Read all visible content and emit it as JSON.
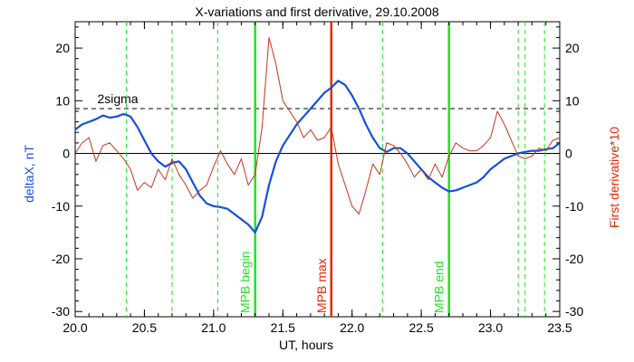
{
  "chart_data": {
    "type": "line",
    "title": "X-variations and first derivative, 29.10.2008",
    "xlabel": "UT, hours",
    "ylabel_left": "deltaX, nT",
    "ylabel_right": "First derivative*10",
    "xlim": [
      20.0,
      23.5
    ],
    "ylim": [
      -31,
      25
    ],
    "x_ticks": [
      "20.0",
      "20.5",
      "21.0",
      "21.5",
      "22.0",
      "22.5",
      "23.0",
      "23.5"
    ],
    "y_ticks": [
      -30,
      -20,
      -10,
      0,
      10,
      20
    ],
    "sigma_level": 8.5,
    "sigma_label": "2sigma",
    "series": [
      {
        "name": "deltaX",
        "color": "#1450dc",
        "x": [
          20.0,
          20.05,
          20.1,
          20.15,
          20.2,
          20.25,
          20.3,
          20.35,
          20.4,
          20.45,
          20.5,
          20.55,
          20.6,
          20.65,
          20.7,
          20.75,
          20.8,
          20.85,
          20.9,
          20.95,
          21.0,
          21.05,
          21.1,
          21.15,
          21.2,
          21.25,
          21.3,
          21.35,
          21.4,
          21.45,
          21.5,
          21.55,
          21.6,
          21.65,
          21.7,
          21.75,
          21.8,
          21.85,
          21.9,
          21.95,
          22.0,
          22.05,
          22.1,
          22.15,
          22.2,
          22.25,
          22.3,
          22.35,
          22.4,
          22.45,
          22.5,
          22.55,
          22.6,
          22.65,
          22.7,
          22.75,
          22.8,
          22.85,
          22.9,
          22.95,
          23.0,
          23.05,
          23.1,
          23.15,
          23.2,
          23.25,
          23.3,
          23.35,
          23.4,
          23.45,
          23.5
        ],
        "values": [
          4.5,
          5.5,
          6.0,
          6.5,
          7.2,
          6.8,
          7.0,
          7.5,
          7.0,
          5.0,
          2.5,
          0.0,
          -1.5,
          -2.5,
          -1.8,
          -1.5,
          -3.0,
          -5.5,
          -8.0,
          -9.5,
          -10.0,
          -10.2,
          -10.5,
          -11.5,
          -12.5,
          -13.5,
          -15.0,
          -12.0,
          -6.0,
          -1.5,
          1.5,
          3.5,
          5.5,
          7.0,
          8.5,
          10.0,
          11.5,
          12.5,
          13.8,
          13.0,
          11.0,
          8.5,
          5.5,
          3.0,
          1.0,
          0.3,
          1.0,
          1.0,
          0.0,
          -1.5,
          -3.0,
          -4.5,
          -5.5,
          -6.5,
          -7.2,
          -7.0,
          -6.5,
          -6.0,
          -5.5,
          -4.5,
          -3.0,
          -2.0,
          -1.0,
          -0.5,
          0.0,
          0.3,
          0.5,
          0.5,
          0.8,
          1.0,
          2.0
        ]
      },
      {
        "name": "First derivative*10",
        "color": "#c8321e",
        "x": [
          20.0,
          20.05,
          20.1,
          20.15,
          20.2,
          20.25,
          20.3,
          20.35,
          20.4,
          20.45,
          20.5,
          20.55,
          20.6,
          20.65,
          20.7,
          20.75,
          20.8,
          20.85,
          20.9,
          20.95,
          21.0,
          21.05,
          21.1,
          21.15,
          21.2,
          21.25,
          21.3,
          21.35,
          21.4,
          21.45,
          21.5,
          21.55,
          21.6,
          21.65,
          21.7,
          21.75,
          21.8,
          21.85,
          21.9,
          21.95,
          22.0,
          22.05,
          22.1,
          22.15,
          22.2,
          22.25,
          22.3,
          22.35,
          22.4,
          22.45,
          22.5,
          22.55,
          22.6,
          22.65,
          22.7,
          22.75,
          22.8,
          22.85,
          22.9,
          22.95,
          23.0,
          23.05,
          23.1,
          23.15,
          23.2,
          23.25,
          23.3,
          23.35,
          23.4,
          23.45,
          23.5
        ],
        "values": [
          0.0,
          2.0,
          3.0,
          -1.5,
          1.5,
          2.0,
          0.5,
          -1.0,
          -3.0,
          -7.0,
          -5.5,
          -6.5,
          -3.0,
          -5.0,
          -1.0,
          -4.0,
          -6.0,
          -8.5,
          -7.0,
          -6.0,
          -2.5,
          0.5,
          -2.0,
          -4.0,
          -1.0,
          -6.0,
          -4.0,
          5.0,
          22.0,
          17.0,
          10.0,
          8.0,
          6.0,
          3.0,
          4.5,
          2.5,
          3.0,
          5.0,
          -2.0,
          -6.0,
          -10.0,
          -11.5,
          -7.0,
          -2.0,
          -4.0,
          2.0,
          1.5,
          0.0,
          -2.0,
          -4.5,
          -3.0,
          -5.0,
          -2.0,
          -4.5,
          -0.5,
          2.0,
          1.0,
          0.5,
          0.5,
          1.5,
          3.0,
          8.0,
          5.5,
          2.5,
          -0.5,
          -1.0,
          -0.5,
          1.0,
          0.5,
          2.5,
          3.0
        ]
      }
    ],
    "dashed_markers": [
      20.37,
      20.7,
      21.03,
      22.22,
      23.2,
      23.25,
      23.39
    ],
    "events": [
      {
        "label": "MPB begin",
        "x": 21.3,
        "color": "#1ee61e"
      },
      {
        "label": "MPB max",
        "x": 21.85,
        "color": "#e62800"
      },
      {
        "label": "MPB end",
        "x": 22.7,
        "color": "#1ee61e"
      }
    ]
  }
}
